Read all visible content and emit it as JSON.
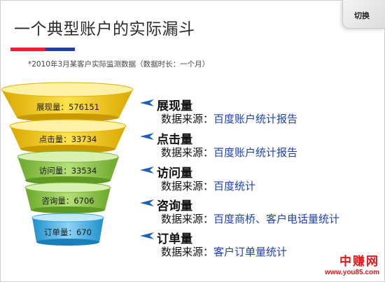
{
  "header": {
    "title": "一个典型账户的实际漏斗",
    "subtitle": "*2010年3月某客户实际监测数据（数据时长：一个月）",
    "switch_label": "切换"
  },
  "funnel": {
    "layers": [
      {
        "label": "展现量：576151",
        "color": "#f4c400"
      },
      {
        "label": "点击量：33734",
        "color": "#f4c400"
      },
      {
        "label": "访问量：33534",
        "color": "#8cc63e"
      },
      {
        "label": "咨询量：6706",
        "color": "#8cc63e"
      },
      {
        "label": "订单量：670",
        "color": "#35a8e0"
      }
    ]
  },
  "items": [
    {
      "title": "展现量",
      "source_prefix": "数据来源：",
      "source_value": "百度账户统计报告"
    },
    {
      "title": "点击量",
      "source_prefix": "数据来源：",
      "source_value": "百度账户统计报告"
    },
    {
      "title": "访问量",
      "source_prefix": "数据来源：",
      "source_value": "百度统计"
    },
    {
      "title": "咨询量",
      "source_prefix": "数据来源：",
      "source_value": "百度商桥、客户电话量统计"
    },
    {
      "title": "订单量",
      "source_prefix": "数据来源：",
      "source_value": "客户订单量统计"
    }
  ],
  "watermark": {
    "name": "中赚网",
    "url": "www.you85.com"
  }
}
